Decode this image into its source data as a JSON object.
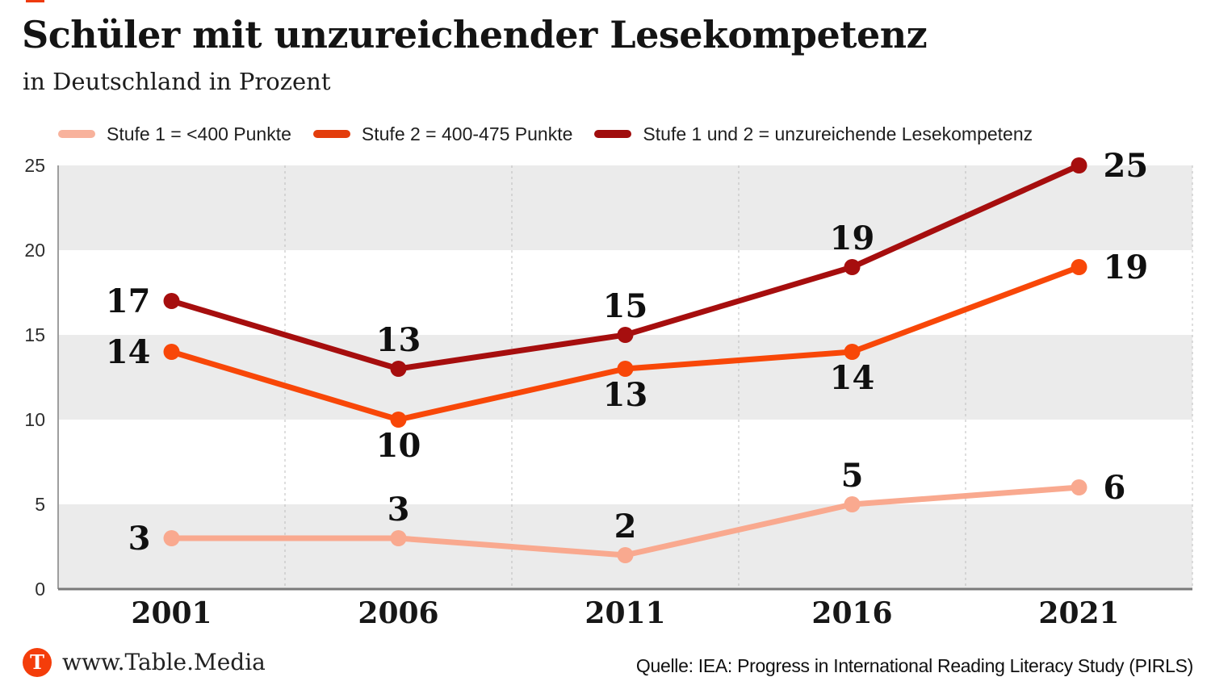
{
  "header": {
    "title": "Schüler mit unzureichender Lesekompetenz",
    "subtitle": "in Deutschland in Prozent"
  },
  "legend": [
    {
      "label": "Stufe 1 = <400 Punkte",
      "color": "#f8b29c"
    },
    {
      "label": "Stufe 2 = 400-475 Punkte",
      "color": "#e33d0c"
    },
    {
      "label": "Stufe 1 und 2 = unzureichende Lesekompetenz",
      "color": "#a00d0d"
    }
  ],
  "chart_data": {
    "type": "line",
    "title": "Schüler mit unzureichender Lesekompetenz",
    "subtitle": "in Deutschland in Prozent",
    "x": [
      "2001",
      "2006",
      "2011",
      "2016",
      "2021"
    ],
    "series": [
      {
        "name": "Stufe 1 = <400 Punkte",
        "color": "#f9a98f",
        "values": [
          3,
          3,
          2,
          5,
          6
        ],
        "label_pos": [
          "left",
          "above",
          "above",
          "above",
          "right"
        ]
      },
      {
        "name": "Stufe 2 = 400-475 Punkte",
        "color": "#f84708",
        "values": [
          14,
          10,
          13,
          14,
          19
        ],
        "label_pos": [
          "left",
          "below",
          "below",
          "below",
          "right"
        ]
      },
      {
        "name": "Stufe 1 und 2 = unzureichende Lesekompetenz",
        "color": "#a60e0e",
        "values": [
          17,
          13,
          15,
          19,
          25
        ],
        "label_pos": [
          "left",
          "above",
          "above",
          "above",
          "right"
        ]
      }
    ],
    "ylim": [
      0,
      25
    ],
    "y_ticks": [
      0,
      5,
      10,
      15,
      20,
      25
    ],
    "grid_bands": [
      [
        0,
        5
      ],
      [
        10,
        15
      ],
      [
        20,
        25
      ]
    ],
    "band_color": "#ebebeb",
    "grid_style": "dashed vertical lines between categories, right edge dashed",
    "legend_position": "top"
  },
  "footer": {
    "brand_icon": "T",
    "brand": "www.Table.Media",
    "source": "Quelle: IEA: Progress in International Reading Literacy Study (PIRLS)"
  }
}
